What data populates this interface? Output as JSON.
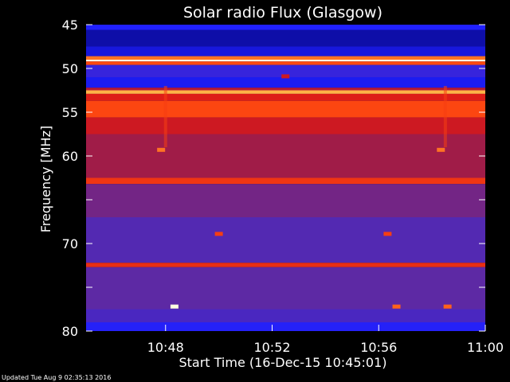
{
  "chart_data": {
    "type": "heatmap",
    "title": "Solar radio Flux (Glasgow)",
    "xlabel": "Start Time (16-Dec-15 10:45:01)",
    "ylabel": "Frequency [MHz]",
    "x_range": [
      "10:45:01",
      "11:00"
    ],
    "x_ticks": [
      "10:48",
      "10:52",
      "10:56",
      "11:00"
    ],
    "y_range": [
      45,
      80
    ],
    "y_ticks": [
      45,
      50,
      55,
      60,
      65,
      70,
      75,
      80
    ],
    "y_tick_labels": [
      "45",
      "50",
      "55",
      "60",
      "",
      "70",
      "",
      "80"
    ],
    "y_inverted": true,
    "colormap": [
      "#05054a",
      "#1010c0",
      "#2020ff",
      "#5a2aa8",
      "#a01c48",
      "#d81818",
      "#ff4a10",
      "#ffb040",
      "#ffffe0"
    ],
    "bands": [
      {
        "f_start": 45.0,
        "f_end": 45.6,
        "level": 0.25
      },
      {
        "f_start": 45.6,
        "f_end": 47.5,
        "level": 0.1
      },
      {
        "f_start": 47.5,
        "f_end": 48.6,
        "level": 0.18
      },
      {
        "f_start": 48.6,
        "f_end": 49.0,
        "level": 0.8
      },
      {
        "f_start": 49.0,
        "f_end": 49.2,
        "level": 1.0
      },
      {
        "f_start": 49.2,
        "f_end": 49.6,
        "level": 0.75
      },
      {
        "f_start": 49.6,
        "f_end": 51.0,
        "level": 0.3
      },
      {
        "f_start": 51.0,
        "f_end": 52.2,
        "level": 0.22
      },
      {
        "f_start": 52.2,
        "f_end": 52.5,
        "level": 0.55
      },
      {
        "f_start": 52.5,
        "f_end": 52.9,
        "level": 0.88
      },
      {
        "f_start": 52.9,
        "f_end": 53.7,
        "level": 0.64
      },
      {
        "f_start": 53.7,
        "f_end": 55.6,
        "level": 0.74
      },
      {
        "f_start": 55.6,
        "f_end": 57.5,
        "level": 0.6
      },
      {
        "f_start": 57.5,
        "f_end": 62.5,
        "level": 0.5
      },
      {
        "f_start": 62.5,
        "f_end": 63.2,
        "level": 0.7
      },
      {
        "f_start": 63.2,
        "f_end": 67.0,
        "level": 0.42
      },
      {
        "f_start": 67.0,
        "f_end": 72.2,
        "level": 0.36
      },
      {
        "f_start": 72.2,
        "f_end": 72.7,
        "level": 0.68
      },
      {
        "f_start": 72.7,
        "f_end": 77.5,
        "level": 0.38
      },
      {
        "f_start": 77.5,
        "f_end": 79.0,
        "level": 0.34
      },
      {
        "f_start": 79.0,
        "f_end": 80.0,
        "level": 0.26
      }
    ],
    "features": [
      {
        "kind": "burst",
        "time": "10:48:20",
        "freq": 77.2,
        "level": 1.0
      },
      {
        "kind": "burst",
        "time": "10:56:40",
        "freq": 77.2,
        "level": 0.78
      },
      {
        "kind": "burst",
        "time": "10:58:35",
        "freq": 77.2,
        "level": 0.78
      },
      {
        "kind": "burst",
        "time": "10:47:50",
        "freq": 59.3,
        "level": 0.8
      },
      {
        "kind": "burst",
        "time": "10:58:20",
        "freq": 59.3,
        "level": 0.8
      },
      {
        "kind": "burst",
        "time": "10:52:30",
        "freq": 50.9,
        "level": 0.6
      },
      {
        "kind": "burst",
        "time": "10:50:00",
        "freq": 68.9,
        "level": 0.72
      },
      {
        "kind": "burst",
        "time": "10:56:20",
        "freq": 68.9,
        "level": 0.72
      },
      {
        "kind": "streak",
        "time": "10:48:00",
        "f_start": 52.0,
        "f_end": 59.0,
        "level": 0.72
      },
      {
        "kind": "streak",
        "time": "10:58:30",
        "f_start": 52.0,
        "f_end": 59.0,
        "level": 0.72
      }
    ]
  },
  "footer": {
    "updated": "Updated Tue Aug  9 02:35:13 2016"
  }
}
